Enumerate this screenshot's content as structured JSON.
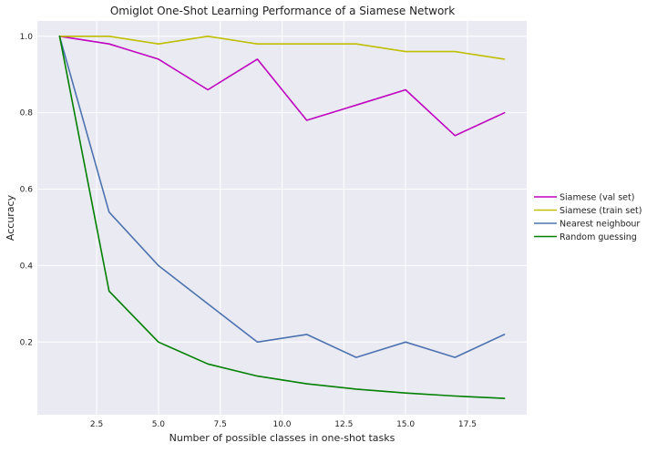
{
  "chart_data": {
    "type": "line",
    "title": "Omiglot One-Shot Learning Performance of a Siamese Network",
    "xlabel": "Number of possible classes in one-shot tasks",
    "ylabel": "Accuracy",
    "x": [
      1,
      3,
      5,
      7,
      9,
      11,
      13,
      15,
      17,
      19
    ],
    "xlim": [
      0.1,
      19.9
    ],
    "ylim": [
      0.01,
      1.04
    ],
    "xticks": [
      2.5,
      5.0,
      7.5,
      10.0,
      12.5,
      15.0,
      17.5
    ],
    "xtick_labels": [
      "2.5",
      "5.0",
      "7.5",
      "10.0",
      "12.5",
      "15.0",
      "17.5"
    ],
    "yticks": [
      0.2,
      0.4,
      0.6,
      0.8,
      1.0
    ],
    "ytick_labels": [
      "0.2",
      "0.4",
      "0.6",
      "0.8",
      "1.0"
    ],
    "grid": true,
    "legend_position": "center-right-outside",
    "series": [
      {
        "name": "Siamese (val set)",
        "color": "#bf00bf",
        "values": [
          1.0,
          0.98,
          0.94,
          0.86,
          0.94,
          0.78,
          0.82,
          0.86,
          0.74,
          0.8
        ]
      },
      {
        "name": "Siamese (train set)",
        "color": "#bfbf00",
        "values": [
          1.0,
          1.0,
          0.98,
          1.0,
          0.98,
          0.98,
          0.98,
          0.96,
          0.96,
          0.94
        ]
      },
      {
        "name": "Nearest neighbour",
        "color": "#4c72b0",
        "values": [
          1.0,
          0.54,
          0.4,
          0.3,
          0.2,
          0.22,
          0.16,
          0.2,
          0.16,
          0.22
        ]
      },
      {
        "name": "Random guessing",
        "color": "#008000",
        "values": [
          1.0,
          0.3333,
          0.2,
          0.1429,
          0.1111,
          0.0909,
          0.0769,
          0.0667,
          0.0588,
          0.0526
        ]
      }
    ]
  }
}
